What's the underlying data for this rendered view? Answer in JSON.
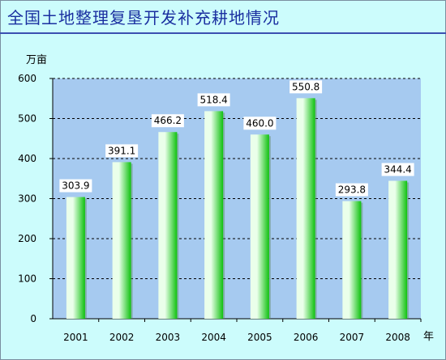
{
  "title": "全国土地整理复垦开发补充耕地情况",
  "chart_data": {
    "type": "bar",
    "ylabel": "万亩",
    "xlabel": "年",
    "categories": [
      "2001",
      "2002",
      "2003",
      "2004",
      "2005",
      "2006",
      "2007",
      "2008"
    ],
    "values": [
      303.9,
      391.1,
      466.2,
      518.4,
      460.0,
      550.8,
      293.8,
      344.4
    ],
    "labels": [
      "303.9",
      "391.1",
      "466.2",
      "518.4",
      "460.0",
      "550.8",
      "293.8",
      "344.4"
    ],
    "ylim": [
      0,
      600
    ],
    "yticks": [
      "0",
      "100",
      "200",
      "300",
      "400",
      "500",
      "600"
    ],
    "grid": true,
    "colors": {
      "plot_background": "#a6caf0",
      "bar_light": "#eaffea",
      "bar_dark": "#0fc10f",
      "gridline": "#000000",
      "label_background": "#ffffff"
    }
  }
}
